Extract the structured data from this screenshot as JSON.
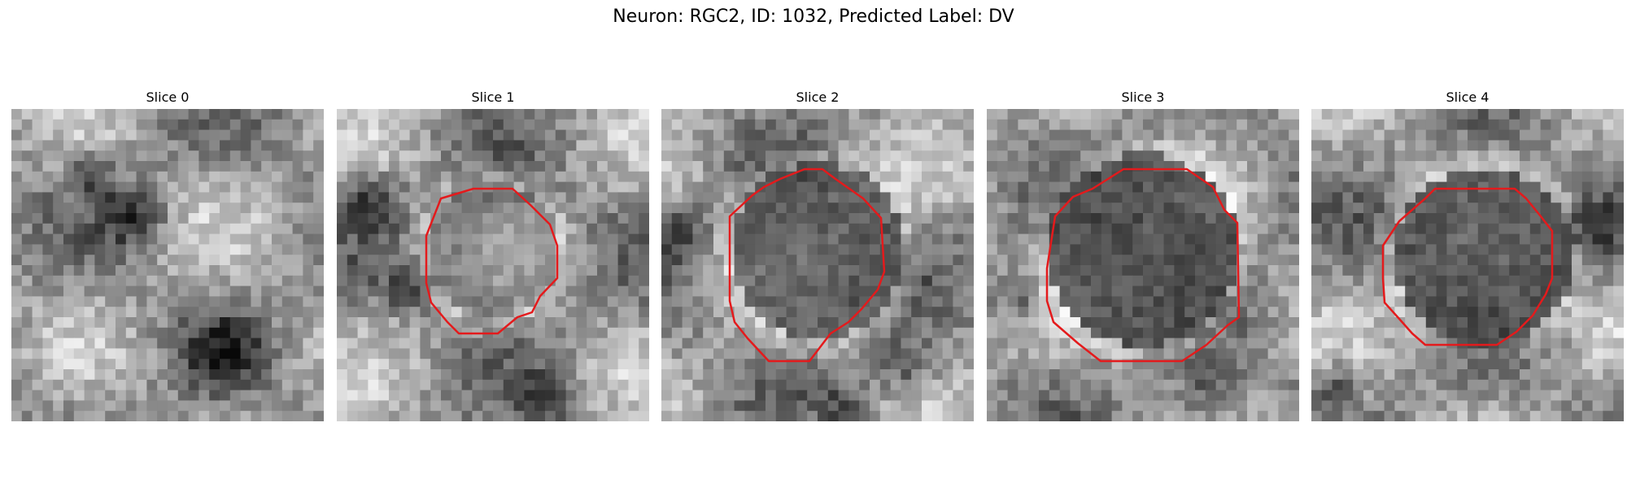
{
  "figure": {
    "title": "Neuron: RGC2, ID: 1032, Predicted Label: DV",
    "contour_color": "#e41a1c"
  },
  "panels": [
    {
      "title": "Slice 0",
      "has_contour": false,
      "blob": null
    },
    {
      "title": "Slice 1",
      "has_contour": true,
      "blob": {
        "strength": 0.35
      }
    },
    {
      "title": "Slice 2",
      "has_contour": true,
      "blob": {
        "strength": 0.7
      }
    },
    {
      "title": "Slice 3",
      "has_contour": true,
      "blob": {
        "strength": 0.85
      }
    },
    {
      "title": "Slice 4",
      "has_contour": true,
      "blob": {
        "strength": 0.8
      }
    }
  ]
}
